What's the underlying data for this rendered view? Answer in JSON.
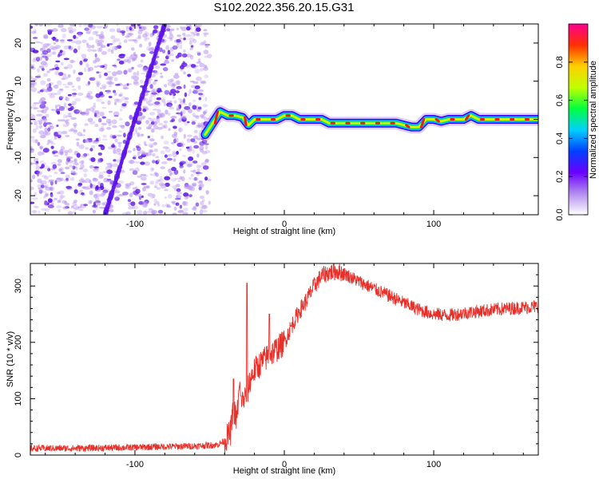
{
  "title": "S102.2022.356.20.15.G31",
  "colors": {
    "snr_line": "#e8302a",
    "noise_dots": "#b38cf0",
    "noise_dots_strong": "#5a10e8",
    "frame": "#000000"
  },
  "chart_data": [
    {
      "type": "heatmap",
      "xlabel": "Height of straight line (km)",
      "ylabel": "Frequency (Hz)",
      "xlim": [
        -170,
        170
      ],
      "ylim": [
        -25,
        25
      ],
      "x_ticks": [
        -100,
        0,
        100
      ],
      "y_ticks": [
        -20,
        -10,
        0,
        10,
        20
      ],
      "colorbar": {
        "label": "Normalized spectral amplitude",
        "range": [
          0,
          1
        ],
        "ticks": [
          0.0,
          0.2,
          0.4,
          0.6,
          0.8
        ],
        "tick_labels": [
          "0.0",
          "0.2",
          "0.4",
          "0.6",
          "0.8"
        ],
        "colormap": [
          "#ffffff",
          "#b38cf0",
          "#6a00ff",
          "#0040ff",
          "#00d0ff",
          "#00ff40",
          "#c0ff00",
          "#ffd000",
          "#ff3000",
          "#ff0090"
        ]
      },
      "noise_region_x": [
        -170,
        -50
      ],
      "spectral_ridge": {
        "x": [
          -53,
          -48,
          -43,
          -38,
          -33,
          -28,
          -24,
          -20,
          -15,
          -10,
          -5,
          0,
          5,
          10,
          15,
          20,
          25,
          30,
          35,
          40,
          45,
          50,
          55,
          60,
          65,
          70,
          75,
          80,
          85,
          90,
          95,
          100,
          105,
          110,
          115,
          120,
          125,
          130,
          135,
          140,
          145,
          150,
          155,
          160,
          165,
          170
        ],
        "frequency": [
          -4,
          -1,
          2,
          1,
          1,
          0.5,
          -1.5,
          0,
          0,
          0,
          0,
          1,
          1,
          0,
          0,
          0,
          0,
          -1,
          -1,
          -1,
          -1,
          -1,
          -1,
          -1,
          -1,
          -1,
          -1,
          -1.5,
          -2,
          -2,
          0,
          0,
          -0.5,
          0,
          0,
          0,
          1,
          0,
          0,
          0,
          0,
          0,
          0,
          0,
          0,
          0
        ]
      },
      "faint_lines": [
        {
          "x": [
            -120,
            -100
          ],
          "frequency": [
            -25,
            0
          ]
        },
        {
          "x": [
            -100,
            -80
          ],
          "frequency": [
            0,
            25
          ]
        }
      ]
    },
    {
      "type": "line",
      "xlabel": "Height of straight line (km)",
      "ylabel": "SNR (10 * v/v)",
      "xlim": [
        -170,
        170
      ],
      "ylim": [
        0,
        340
      ],
      "x_ticks": [
        -100,
        0,
        100
      ],
      "y_ticks": [
        0,
        100,
        200,
        300
      ],
      "series": [
        {
          "x": [
            -170,
            -140,
            -110,
            -80,
            -60,
            -45,
            -40,
            -36,
            -34,
            -32,
            -30,
            -28,
            -25,
            -22,
            -20,
            -15,
            -10,
            -5,
            0,
            5,
            10,
            15,
            20,
            25,
            30,
            35,
            40,
            50,
            60,
            70,
            80,
            90,
            100,
            110,
            120,
            130,
            140,
            150,
            160,
            170
          ],
          "y": [
            12,
            12,
            13,
            15,
            16,
            18,
            25,
            40,
            85,
            60,
            120,
            95,
            110,
            140,
            150,
            165,
            178,
            188,
            200,
            230,
            255,
            275,
            300,
            318,
            324,
            326,
            322,
            308,
            295,
            283,
            270,
            258,
            250,
            248,
            252,
            255,
            258,
            260,
            262,
            264
          ]
        }
      ],
      "spikes": [
        {
          "x": -34,
          "y": 135
        },
        {
          "x": -29,
          "y": 105
        },
        {
          "x": -25,
          "y": 305
        },
        {
          "x": -10,
          "y": 250
        }
      ]
    }
  ]
}
